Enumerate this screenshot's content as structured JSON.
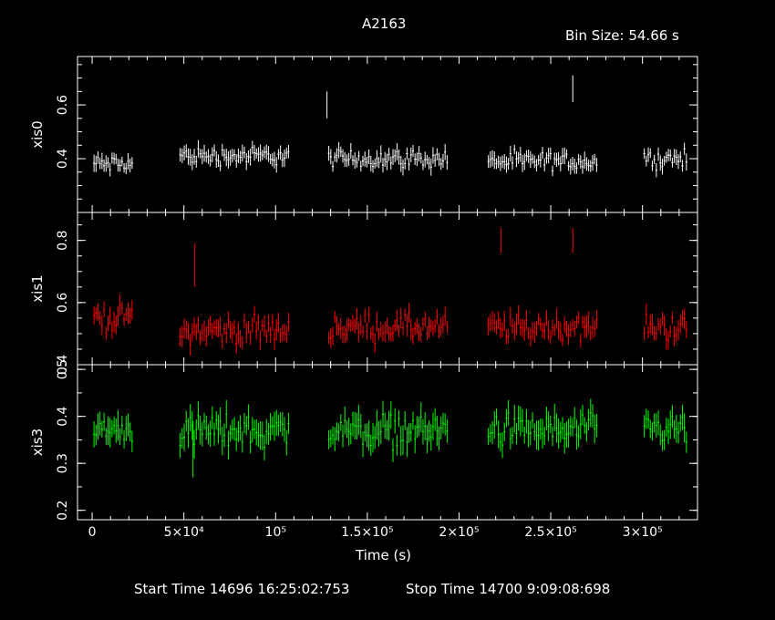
{
  "title": "A2163",
  "bin_size": "Bin Size: 54.66 s",
  "xlabel": "Time (s)",
  "footer": {
    "start": "Start Time 14696 16:25:02:753",
    "stop": "Stop Time 14700  9:09:08:698"
  },
  "colors": {
    "background": "#000000",
    "axes": "#ffffff",
    "xis0": "#ffffff",
    "xis1": "#ff0000",
    "xis3": "#00ff00"
  },
  "chart_data": {
    "type": "scatter",
    "title": "A2163",
    "xlabel": "Time (s)",
    "xlim": [
      -8000,
      330000
    ],
    "x_ticks": [
      {
        "value": 0,
        "label": "0"
      },
      {
        "value": 50000,
        "label": "5×10⁴"
      },
      {
        "value": 100000,
        "label": "10⁵"
      },
      {
        "value": 150000,
        "label": "1.5×10⁵"
      },
      {
        "value": 200000,
        "label": "2×10⁵"
      },
      {
        "value": 250000,
        "label": "2.5×10⁵"
      },
      {
        "value": 300000,
        "label": "3×10⁵"
      }
    ],
    "segments": [
      [
        1000,
        22000
      ],
      [
        48000,
        108000
      ],
      [
        129000,
        194000
      ],
      [
        216000,
        276000
      ],
      [
        301000,
        324000
      ]
    ],
    "series": [
      {
        "name": "xis0",
        "color": "#ffffff",
        "ylabel": "xis0",
        "ylim": [
          0.2,
          0.78
        ],
        "ticks": [
          {
            "value": 0.4,
            "label": "0.4"
          },
          {
            "value": 0.6,
            "label": "0.6"
          }
        ],
        "seg_means": [
          0.38,
          0.41,
          0.4,
          0.39,
          0.4
        ],
        "noise": 0.028,
        "err": 0.05,
        "spikes": [
          [
            128000,
            0.6,
            0.1
          ],
          [
            262000,
            0.66,
            0.1
          ]
        ]
      },
      {
        "name": "xis1",
        "color": "#ff0000",
        "ylabel": "xis1",
        "ylim": [
          0.4,
          0.89
        ],
        "ticks": [
          {
            "value": 0.4,
            "label": "0.4"
          },
          {
            "value": 0.6,
            "label": "0.6"
          },
          {
            "value": 0.8,
            "label": "0.8"
          }
        ],
        "seg_means": [
          0.55,
          0.51,
          0.52,
          0.52,
          0.52
        ],
        "noise": 0.035,
        "err": 0.055,
        "spikes": [
          [
            56000,
            0.72,
            0.14
          ],
          [
            223000,
            0.8,
            0.08
          ],
          [
            262000,
            0.8,
            0.08
          ]
        ]
      },
      {
        "name": "xis3",
        "color": "#00ff00",
        "ylabel": "xis3",
        "ylim": [
          0.18,
          0.51
        ],
        "ticks": [
          {
            "value": 0.2,
            "label": "0.2"
          },
          {
            "value": 0.3,
            "label": "0.3"
          },
          {
            "value": 0.4,
            "label": "0.4"
          },
          {
            "value": 0.5,
            "label": "0.5"
          }
        ],
        "seg_means": [
          0.37,
          0.37,
          0.37,
          0.37,
          0.37
        ],
        "noise": 0.03,
        "err": 0.05,
        "spikes": [
          [
            55000,
            0.33,
            0.12
          ]
        ]
      }
    ]
  }
}
